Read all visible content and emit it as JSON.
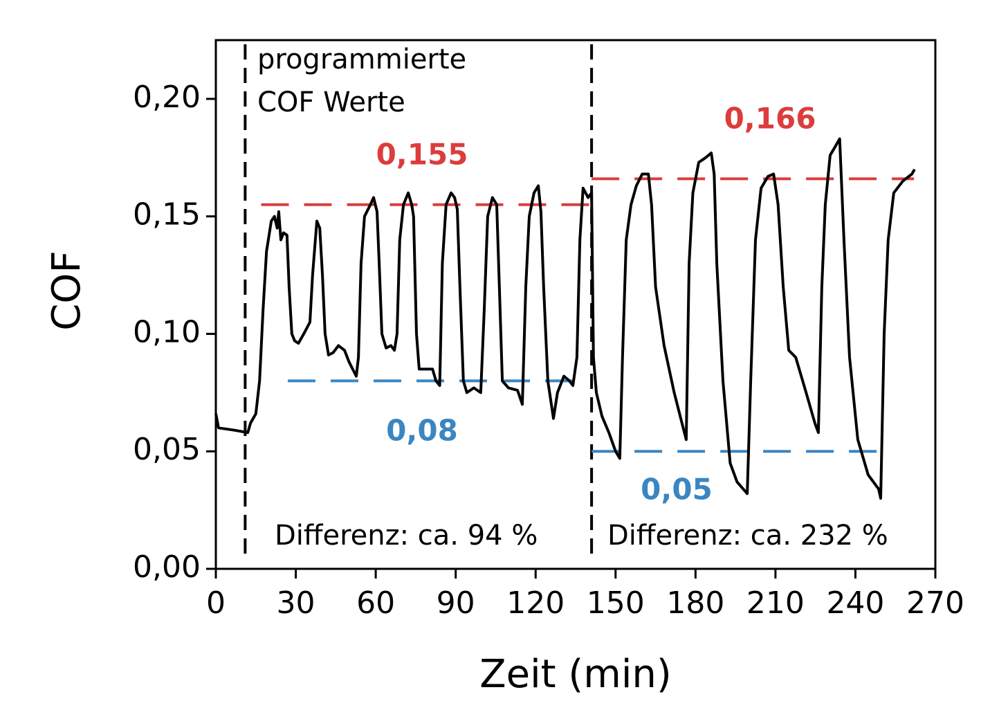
{
  "chart_data": {
    "type": "line",
    "xlabel": "Zeit (min)",
    "ylabel": "COF",
    "annotations": [
      "programmierte",
      "COF Werte",
      "Differenz: ca. 94 %",
      "Differenz: ca. 232 %"
    ],
    "xlim": [
      0,
      270
    ],
    "ylim": [
      0,
      0.225
    ],
    "xticks": [
      0,
      30,
      60,
      90,
      120,
      150,
      180,
      210,
      240,
      270
    ],
    "yticks": [
      {
        "value": 0,
        "label": "0,00"
      },
      {
        "value": 0.05,
        "label": "0,05"
      },
      {
        "value": 0.1,
        "label": "0,10"
      },
      {
        "value": 0.15,
        "label": "0,15"
      },
      {
        "value": 0.2,
        "label": "0,20"
      }
    ],
    "vlines": [
      11,
      141
    ],
    "reference_lines": [
      {
        "value": 0.155,
        "label": "0,155",
        "color": "#dc3c3c",
        "x": [
          17,
          141
        ]
      },
      {
        "value": 0.166,
        "label": "0,166",
        "color": "#dc3c3c",
        "x": [
          141,
          262
        ]
      },
      {
        "value": 0.08,
        "label": "0,08",
        "color": "#3a86c2",
        "x": [
          27,
          134
        ]
      },
      {
        "value": 0.05,
        "label": "0,05",
        "color": "#3a86c2",
        "x": [
          141,
          250
        ]
      }
    ],
    "x": [
      0,
      1,
      7,
      12,
      13,
      15,
      16.4,
      17.7,
      19,
      20.8,
      22,
      23,
      23.6,
      24.4,
      25.4,
      26.7,
      27.5,
      28.5,
      29.6,
      31,
      33,
      35.3,
      36.3,
      37.9,
      39,
      40,
      41,
      42.3,
      44,
      46,
      48.3,
      50,
      52.7,
      53.5,
      54.5,
      55.8,
      58,
      59.2,
      60.5,
      61.3,
      62.3,
      63.9,
      65.7,
      67,
      68,
      69,
      70.4,
      72.2,
      73.5,
      74.2,
      75.3,
      76.3,
      78.7,
      81.3,
      82.6,
      84,
      85,
      86.4,
      88.3,
      89.6,
      90.6,
      91.6,
      92.9,
      94.2,
      96.8,
      99.4,
      100.7,
      102,
      103.8,
      105.4,
      106.4,
      107.5,
      109.8,
      113.2,
      115,
      116.3,
      117.6,
      119.4,
      121,
      122,
      123,
      124.6,
      126.7,
      128.2,
      130.6,
      132.7,
      134,
      135.5,
      136.6,
      137.8,
      139.7,
      141,
      141.7,
      142.8,
      144.9,
      147.5,
      150,
      151.6,
      152.6,
      154,
      155.8,
      157.8,
      160,
      162.3,
      163.5,
      165,
      168.2,
      172,
      174.7,
      176.5,
      177.6,
      179,
      181.2,
      183.8,
      185.9,
      187,
      188,
      190.3,
      193,
      195.6,
      199.4,
      200.7,
      202.5,
      204.6,
      207.2,
      209.3,
      211,
      212.9,
      215,
      217.6,
      221.5,
      224.8,
      226.1,
      227.4,
      228.7,
      230.5,
      232.6,
      234.1,
      235.7,
      237.8,
      240.9,
      244.8,
      248.7,
      249.5,
      250.8,
      252.3,
      254.4,
      257.8,
      261.2,
      262.2
    ],
    "series": [
      {
        "name": "COF",
        "color": "#000000",
        "values": [
          0.066,
          0.06,
          0.059,
          0.058,
          0.062,
          0.066,
          0.08,
          0.11,
          0.135,
          0.148,
          0.15,
          0.145,
          0.152,
          0.14,
          0.143,
          0.142,
          0.12,
          0.1,
          0.097,
          0.096,
          0.1,
          0.105,
          0.125,
          0.148,
          0.145,
          0.125,
          0.1,
          0.091,
          0.092,
          0.095,
          0.093,
          0.088,
          0.082,
          0.09,
          0.13,
          0.15,
          0.155,
          0.158,
          0.152,
          0.13,
          0.1,
          0.094,
          0.095,
          0.093,
          0.1,
          0.14,
          0.155,
          0.16,
          0.155,
          0.15,
          0.1,
          0.085,
          0.085,
          0.085,
          0.08,
          0.078,
          0.13,
          0.155,
          0.16,
          0.158,
          0.153,
          0.12,
          0.08,
          0.075,
          0.077,
          0.075,
          0.11,
          0.15,
          0.158,
          0.155,
          0.12,
          0.08,
          0.077,
          0.076,
          0.07,
          0.12,
          0.15,
          0.16,
          0.163,
          0.152,
          0.12,
          0.08,
          0.064,
          0.075,
          0.082,
          0.08,
          0.078,
          0.09,
          0.14,
          0.162,
          0.158,
          0.16,
          0.09,
          0.075,
          0.065,
          0.058,
          0.05,
          0.047,
          0.09,
          0.14,
          0.155,
          0.163,
          0.168,
          0.168,
          0.155,
          0.12,
          0.095,
          0.075,
          0.063,
          0.055,
          0.13,
          0.16,
          0.173,
          0.175,
          0.177,
          0.168,
          0.13,
          0.08,
          0.045,
          0.037,
          0.032,
          0.08,
          0.14,
          0.162,
          0.167,
          0.168,
          0.155,
          0.12,
          0.093,
          0.09,
          0.075,
          0.062,
          0.058,
          0.12,
          0.155,
          0.176,
          0.18,
          0.183,
          0.14,
          0.09,
          0.055,
          0.04,
          0.034,
          0.03,
          0.1,
          0.14,
          0.16,
          0.165,
          0.168,
          0.17
        ]
      }
    ]
  }
}
